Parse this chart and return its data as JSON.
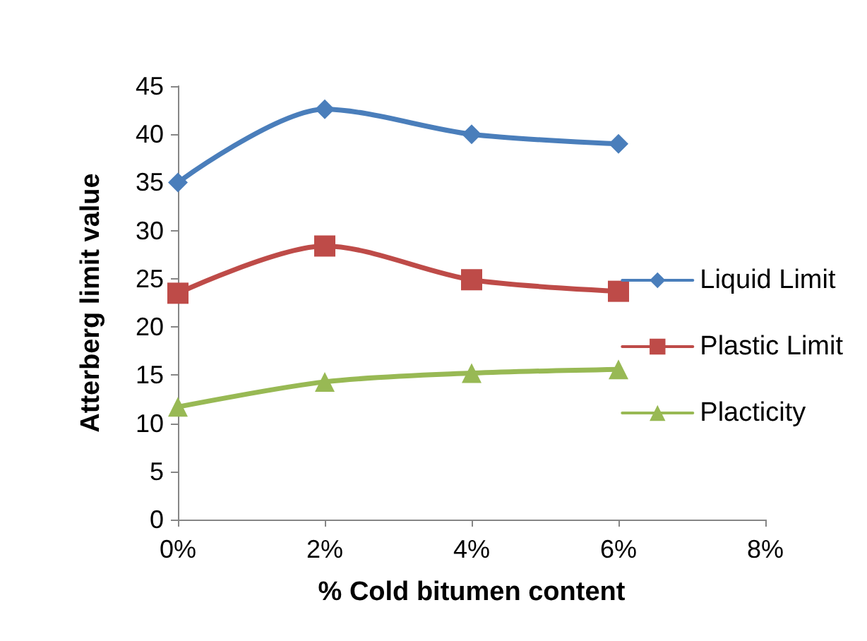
{
  "chart_data": {
    "type": "line",
    "xlabel": "% Cold bitumen content",
    "ylabel": "Atterberg limit value",
    "x": [
      0,
      2,
      4,
      6
    ],
    "series": [
      {
        "name": "Liquid Limit",
        "color": "#4a7ebb",
        "marker": "diamond",
        "values": [
          35,
          42.6,
          40,
          39
        ]
      },
      {
        "name": "Plastic Limit",
        "color": "#be4b48",
        "marker": "square",
        "values": [
          23.5,
          28.4,
          24.9,
          23.7
        ]
      },
      {
        "name": "Placticity",
        "color": "#98b954",
        "marker": "triangle",
        "values": [
          11.7,
          14.3,
          15.2,
          15.6
        ]
      }
    ],
    "xlim": [
      0,
      8
    ],
    "xticks": [
      {
        "value": 0,
        "label": "0%"
      },
      {
        "value": 2,
        "label": "2%"
      },
      {
        "value": 4,
        "label": "4%"
      },
      {
        "value": 6,
        "label": "6%"
      },
      {
        "value": 8,
        "label": "8%"
      }
    ],
    "ylim": [
      0,
      45
    ],
    "yticks": [
      0,
      5,
      10,
      15,
      20,
      25,
      30,
      35,
      40,
      45
    ],
    "grid": false,
    "legend": "right",
    "line_style": "solid"
  }
}
